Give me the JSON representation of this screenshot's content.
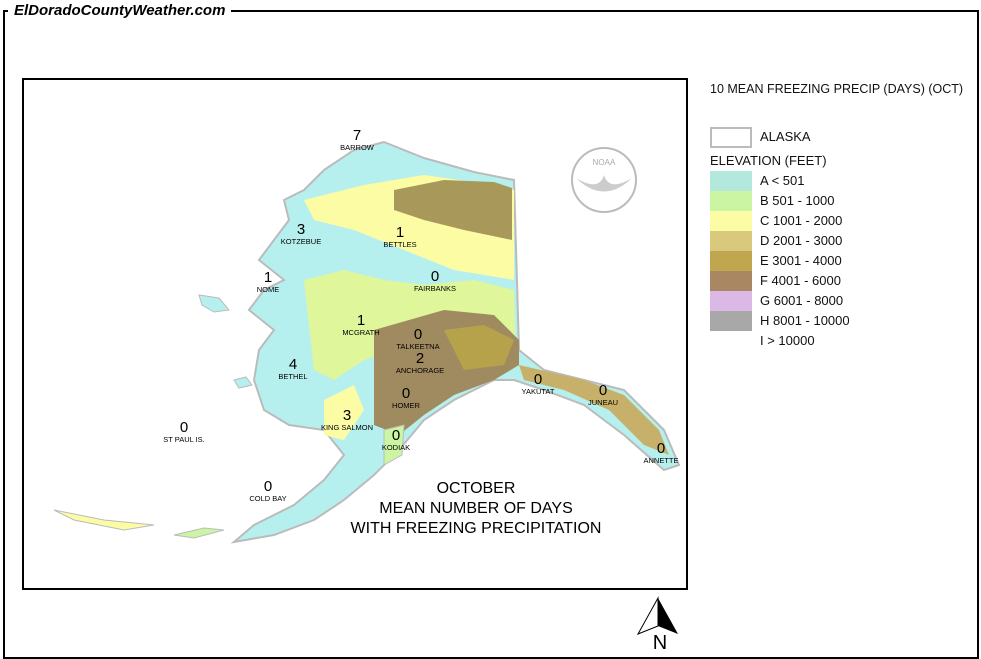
{
  "site_title": "ElDoradoCountyWeather.com",
  "map_title": [
    "OCTOBER",
    "MEAN NUMBER OF DAYS",
    "WITH FREEZING PRECIPITATION"
  ],
  "legend": {
    "title": "10 MEAN FREEZING PRECIP (DAYS) (OCT)",
    "boundary_label": "ALASKA",
    "elevation_heading": "ELEVATION (FEET)",
    "classes": [
      {
        "label": "A < 501",
        "color": "#b3e8dc"
      },
      {
        "label": "B 501 - 1000",
        "color": "#ccf5a3"
      },
      {
        "label": "C 1001 - 2000",
        "color": "#fcfca5"
      },
      {
        "label": "D 2001 - 3000",
        "color": "#d8c97d"
      },
      {
        "label": "E 3001 - 4000",
        "color": "#c1a650"
      },
      {
        "label": "F 4001 - 6000",
        "color": "#a88762"
      },
      {
        "label": "G 6001 - 8000",
        "color": "#dcb8e6"
      },
      {
        "label": "H 8001 - 10000",
        "color": "#a8a8a8"
      },
      {
        "label": "I > 10000",
        "color": ""
      }
    ]
  },
  "stations": [
    {
      "name": "BARROW",
      "value": "7"
    },
    {
      "name": "KOTZEBUE",
      "value": "3"
    },
    {
      "name": "BETTLES",
      "value": "1"
    },
    {
      "name": "NOME",
      "value": "1"
    },
    {
      "name": "FAIRBANKS",
      "value": "0"
    },
    {
      "name": "MCGRATH",
      "value": "1"
    },
    {
      "name": "TALKEETNA",
      "value": "0"
    },
    {
      "name": "ANCHORAGE",
      "value": "2"
    },
    {
      "name": "BETHEL",
      "value": "4"
    },
    {
      "name": "YAKUTAT",
      "value": "0"
    },
    {
      "name": "JUNEAU",
      "value": "0"
    },
    {
      "name": "HOMER",
      "value": "0"
    },
    {
      "name": "KING SALMON",
      "value": "3"
    },
    {
      "name": "KODIAK",
      "value": "0"
    },
    {
      "name": "ST PAUL IS.",
      "value": "0"
    },
    {
      "name": "ANNETTE",
      "value": "0"
    },
    {
      "name": "COLD BAY",
      "value": "0"
    }
  ],
  "logo_text": "NOAA",
  "north_label": "N"
}
